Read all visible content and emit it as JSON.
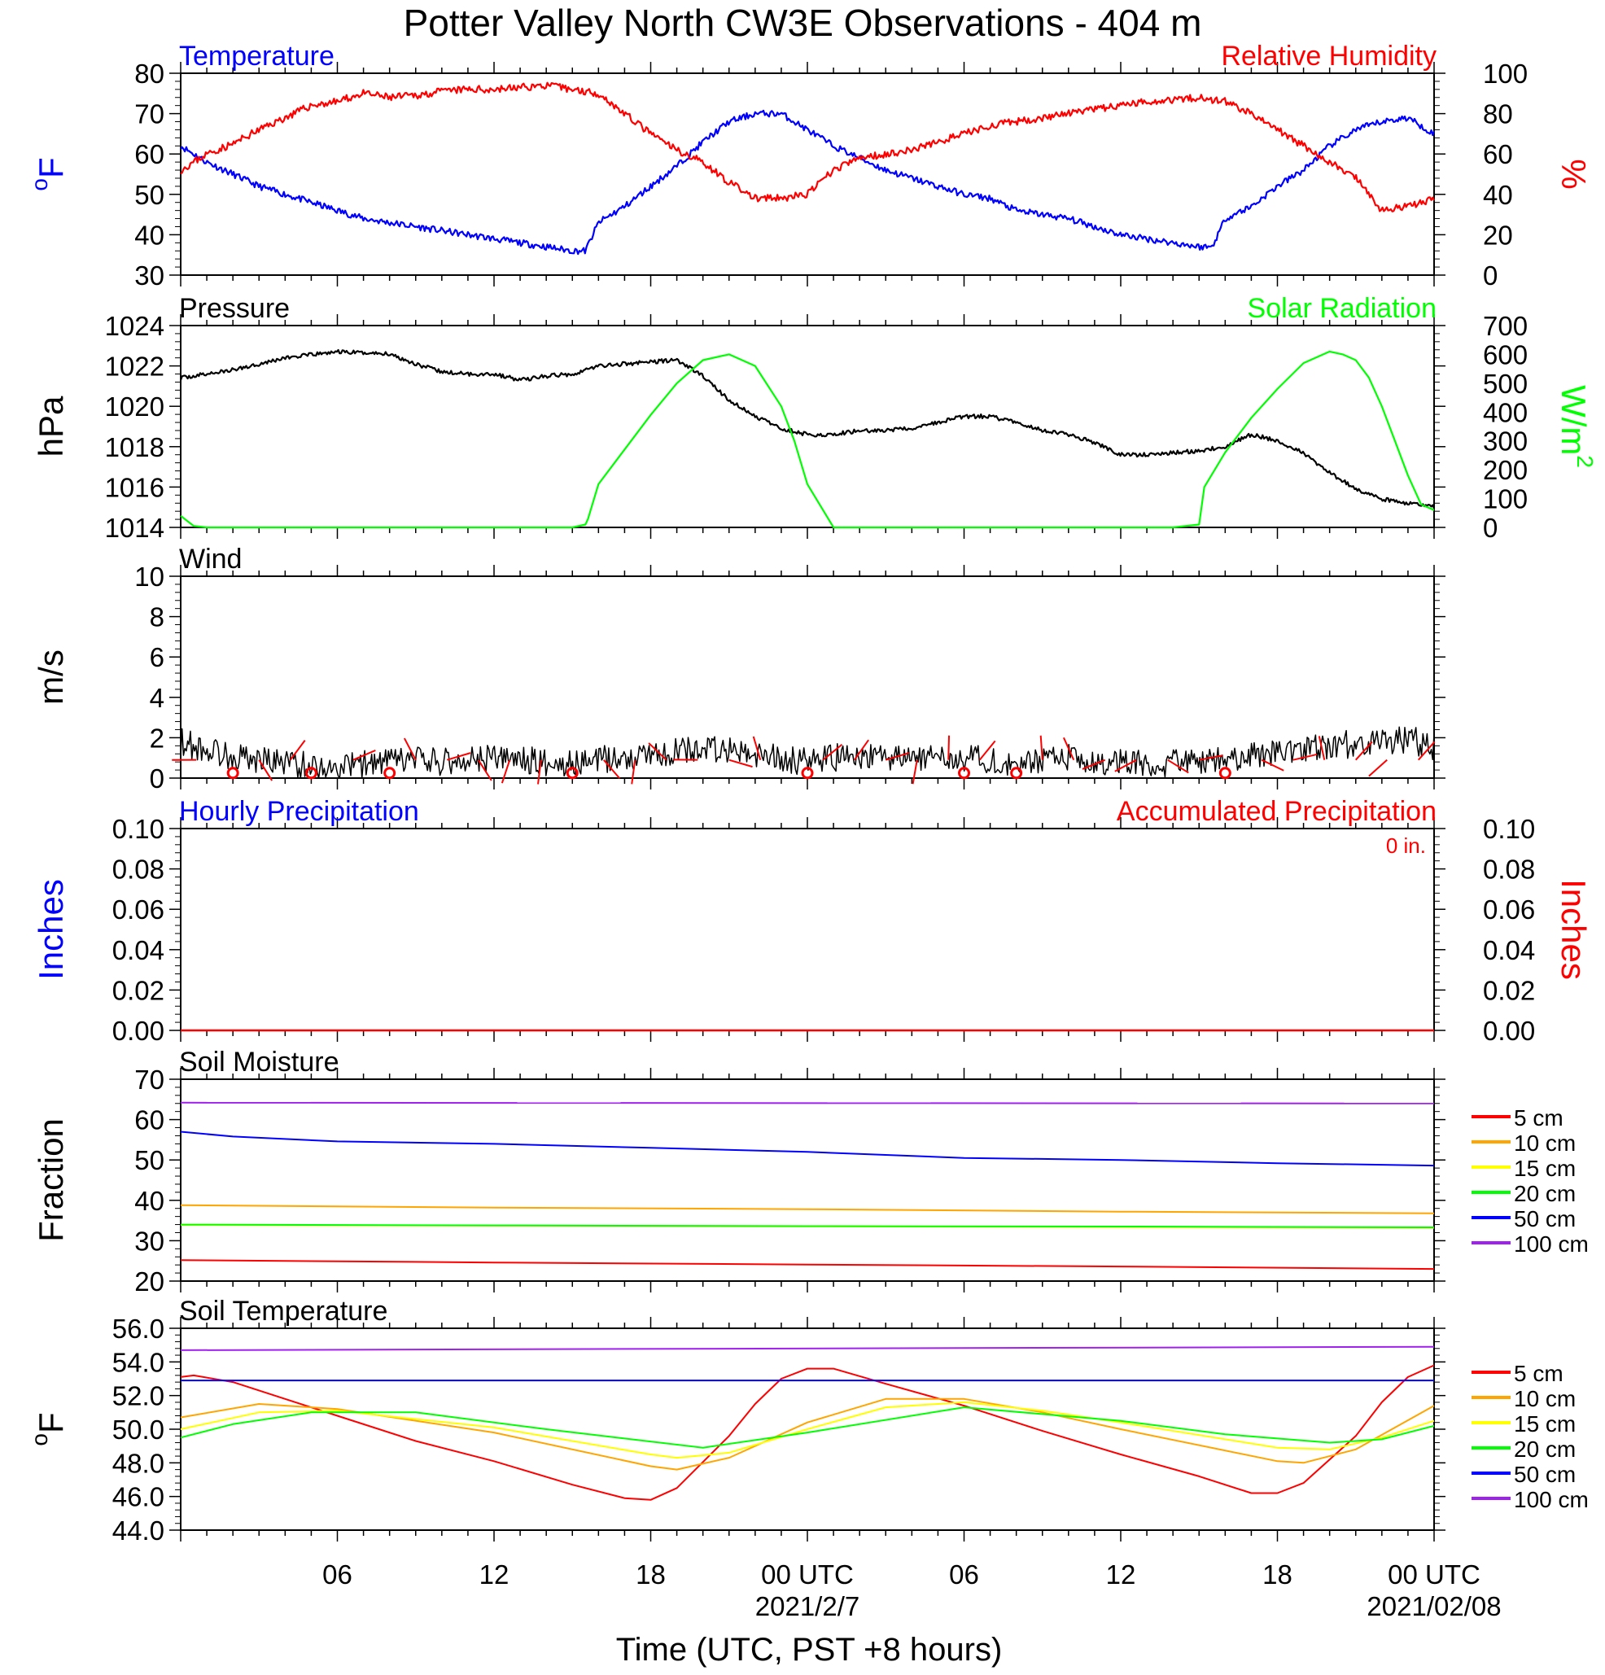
{
  "title": "Potter Valley North CW3E Observations - 404 m",
  "colors": {
    "temperature": "#0000ff",
    "humidity": "#ff0000",
    "pressure": "#000000",
    "solar": "#00ff00",
    "wind": "#000000",
    "barb": "#ff0000",
    "precip_hourly": "#0000ff",
    "precip_accum": "#ff0000",
    "cm5": "#ff0000",
    "cm10": "#ffa500",
    "cm15": "#ffff00",
    "cm20": "#00ff00",
    "cm50": "#0000ff",
    "cm100": "#a020f0"
  },
  "time_axis": {
    "title": "Time (UTC, PST +8 hours)",
    "range_hours": [
      0,
      48
    ],
    "tick_labels": [
      {
        "t": 6,
        "label": "06"
      },
      {
        "t": 12,
        "label": "12"
      },
      {
        "t": 18,
        "label": "18"
      },
      {
        "t": 24,
        "label": "00 UTC"
      },
      {
        "t": 30,
        "label": "06"
      },
      {
        "t": 36,
        "label": "12"
      },
      {
        "t": 42,
        "label": "18"
      },
      {
        "t": 48,
        "label": "00 UTC"
      }
    ],
    "date_labels": [
      {
        "t": 24,
        "label": "2021/2/7"
      },
      {
        "t": 48,
        "label": "2021/02/08"
      }
    ]
  },
  "chart_data": [
    {
      "type": "line",
      "panel": "temperature_humidity",
      "left_label": "Temperature",
      "right_label": "Relative Humidity",
      "ylabel_left": "oF",
      "ylabel_right": "%",
      "ylim_left": [
        30,
        80
      ],
      "ylim_right": [
        0,
        100
      ],
      "yticks_left": [
        "30",
        "40",
        "50",
        "60",
        "70",
        "80"
      ],
      "yticks_right": [
        "0",
        "20",
        "40",
        "60",
        "80",
        "100"
      ],
      "series": [
        {
          "name": "Temperature",
          "axis": "left",
          "x": [
            0,
            1,
            2,
            3,
            4,
            5,
            6,
            7,
            8,
            9,
            10,
            11,
            12,
            13,
            14,
            15,
            15.5,
            16,
            17,
            18,
            19,
            20,
            21,
            22,
            23,
            24,
            25,
            26,
            27,
            28,
            29,
            30,
            31,
            32,
            33,
            34,
            35,
            36,
            37,
            38,
            39,
            39.5,
            40,
            41,
            42,
            43,
            44,
            45,
            46,
            47,
            48
          ],
          "y": [
            62,
            58,
            55,
            52,
            50,
            48,
            46,
            44,
            43,
            42,
            41,
            40,
            39,
            38,
            37,
            36,
            36,
            43,
            47,
            52,
            57,
            63,
            68,
            70,
            70,
            66,
            62,
            59,
            56,
            54,
            52,
            50,
            49,
            46,
            45,
            44,
            42,
            40,
            39,
            38,
            37,
            37,
            44,
            47,
            52,
            56,
            62,
            66,
            68,
            69,
            65
          ]
        },
        {
          "name": "Relative Humidity",
          "axis": "right",
          "x": [
            0,
            1,
            2,
            3,
            4,
            5,
            6,
            7,
            8,
            9,
            10,
            11,
            12,
            13,
            14,
            15,
            16,
            17,
            18,
            19,
            20,
            21,
            22,
            23,
            24,
            25,
            26,
            27,
            28,
            29,
            30,
            31,
            32,
            33,
            34,
            35,
            36,
            37,
            38,
            39,
            40,
            41,
            42,
            43,
            44,
            45,
            46,
            47,
            48
          ],
          "y": [
            52,
            60,
            65,
            72,
            78,
            84,
            86,
            90,
            88,
            89,
            91,
            92,
            92,
            93,
            94,
            92,
            90,
            80,
            70,
            62,
            56,
            46,
            38,
            38,
            40,
            52,
            58,
            60,
            62,
            66,
            70,
            74,
            76,
            78,
            80,
            82,
            84,
            86,
            87,
            88,
            86,
            80,
            72,
            64,
            56,
            48,
            32,
            34,
            38
          ]
        }
      ]
    },
    {
      "type": "line",
      "panel": "pressure_solar",
      "left_label": "Pressure",
      "right_label": "Solar Radiation",
      "ylabel_left": "hPa",
      "ylabel_right": "W/m2",
      "ylim_left": [
        1014,
        1024
      ],
      "ylim_right": [
        0,
        700
      ],
      "yticks_left": [
        "1014",
        "1016",
        "1018",
        "1020",
        "1022",
        "1024"
      ],
      "yticks_right": [
        "0",
        "100",
        "200",
        "300",
        "400",
        "500",
        "600",
        "700"
      ],
      "series": [
        {
          "name": "Pressure",
          "axis": "left",
          "x": [
            0,
            2,
            4,
            6,
            8,
            9,
            10,
            11,
            12,
            13,
            14,
            15,
            16,
            17,
            18,
            19,
            20,
            21,
            22,
            23,
            24,
            25,
            26,
            27,
            28,
            29,
            30,
            31,
            32,
            33,
            34,
            35,
            36,
            37,
            38,
            39,
            40,
            41,
            42,
            43,
            44,
            45,
            46,
            47,
            48
          ],
          "y": [
            1021.4,
            1021.8,
            1022.4,
            1022.7,
            1022.6,
            1022.1,
            1021.7,
            1021.6,
            1021.6,
            1021.3,
            1021.5,
            1021.6,
            1022.0,
            1022.1,
            1022.2,
            1022.3,
            1021.5,
            1020.3,
            1019.5,
            1018.9,
            1018.6,
            1018.6,
            1018.8,
            1018.8,
            1018.9,
            1019.2,
            1019.5,
            1019.5,
            1019.2,
            1018.8,
            1018.6,
            1018.2,
            1017.6,
            1017.6,
            1017.7,
            1017.8,
            1018.0,
            1018.6,
            1018.3,
            1017.7,
            1016.7,
            1015.9,
            1015.4,
            1015.2,
            1015.0
          ]
        },
        {
          "name": "Solar Radiation",
          "axis": "right",
          "x": [
            0,
            0.5,
            1,
            14,
            15,
            15.5,
            15.6,
            16,
            17,
            18,
            19,
            20,
            21,
            22,
            23,
            23.5,
            24,
            25,
            38,
            39,
            39.2,
            40,
            41,
            42,
            43,
            44,
            44.5,
            45,
            45.5,
            46,
            46.5,
            47,
            47.5,
            48
          ],
          "y": [
            40,
            5,
            0,
            0,
            0,
            10,
            30,
            150,
            270,
            390,
            500,
            580,
            600,
            560,
            420,
            300,
            150,
            0,
            0,
            10,
            140,
            260,
            380,
            480,
            570,
            610,
            600,
            580,
            520,
            420,
            300,
            180,
            80,
            60
          ]
        }
      ]
    },
    {
      "type": "line",
      "panel": "wind",
      "left_label": "Wind",
      "ylabel_left": "m/s",
      "ylim_left": [
        0,
        10
      ],
      "yticks_left": [
        "0",
        "2",
        "4",
        "6",
        "8",
        "10"
      ],
      "series": [
        {
          "name": "Wind",
          "axis": "left",
          "x": [
            0,
            1,
            2,
            3,
            4,
            5,
            6,
            7,
            8,
            9,
            10,
            11,
            12,
            13,
            14,
            15,
            16,
            17,
            18,
            19,
            20,
            21,
            22,
            23,
            24,
            25,
            26,
            27,
            28,
            29,
            30,
            31,
            32,
            33,
            34,
            35,
            36,
            37,
            38,
            39,
            40,
            41,
            42,
            43,
            44,
            45,
            46,
            47,
            48
          ],
          "y": [
            1.8,
            1.4,
            1.1,
            0.9,
            0.8,
            0.6,
            0.5,
            0.7,
            0.8,
            0.9,
            0.8,
            0.9,
            1.0,
            0.9,
            0.8,
            0.7,
            0.9,
            1.0,
            1.2,
            1.3,
            1.5,
            1.3,
            1.1,
            1.0,
            0.8,
            1.0,
            1.1,
            1.0,
            0.9,
            1.1,
            1.0,
            0.9,
            0.8,
            0.9,
            1.0,
            0.8,
            0.9,
            0.8,
            0.7,
            0.8,
            0.9,
            1.1,
            1.3,
            1.5,
            1.6,
            1.7,
            1.8,
            1.9,
            1.6
          ]
        }
      ],
      "calm_markers_x": [
        2,
        5,
        8,
        15,
        24,
        30,
        32,
        40
      ]
    },
    {
      "type": "line",
      "panel": "precipitation",
      "left_label": "Hourly Precipitation",
      "right_label": "Accumulated Precipitation",
      "total_text": "0 in.",
      "ylabel_left": "Inches",
      "ylabel_right": "Inches",
      "ylim_left": [
        0,
        0.1
      ],
      "ylim_right": [
        0,
        0.1
      ],
      "yticks_left": [
        "0.00",
        "0.02",
        "0.04",
        "0.06",
        "0.08",
        "0.10"
      ],
      "yticks_right": [
        "0.00",
        "0.02",
        "0.04",
        "0.06",
        "0.08",
        "0.10"
      ],
      "series": [
        {
          "name": "Accumulated Precipitation",
          "axis": "right",
          "x": [
            0,
            48
          ],
          "y": [
            0,
            0
          ]
        }
      ]
    },
    {
      "type": "line",
      "panel": "soil_moisture",
      "left_label": "Soil Moisture",
      "ylabel_left": "Fraction",
      "ylim_left": [
        20,
        70
      ],
      "yticks_left": [
        "20",
        "30",
        "40",
        "50",
        "60",
        "70"
      ],
      "series": [
        {
          "name": "5 cm",
          "color_key": "cm5",
          "x": [
            0,
            12,
            24,
            36,
            48
          ],
          "y": [
            25.2,
            24.6,
            24.1,
            23.6,
            23.0
          ]
        },
        {
          "name": "10 cm",
          "color_key": "cm10",
          "x": [
            0,
            12,
            24,
            36,
            48
          ],
          "y": [
            38.8,
            38.2,
            37.8,
            37.2,
            36.8
          ]
        },
        {
          "name": "15 cm",
          "color_key": "cm15",
          "x": [
            0,
            48
          ],
          "y": [
            33.9,
            33.2
          ]
        },
        {
          "name": "20 cm",
          "color_key": "cm20",
          "x": [
            0,
            12,
            24,
            36,
            48
          ],
          "y": [
            34.0,
            33.8,
            33.6,
            33.5,
            33.3
          ]
        },
        {
          "name": "50 cm",
          "color_key": "cm50",
          "x": [
            0,
            2,
            6,
            12,
            18,
            24,
            30,
            36,
            42,
            48
          ],
          "y": [
            57.0,
            55.8,
            54.6,
            54.0,
            53.0,
            52.0,
            50.5,
            50.0,
            49.2,
            48.6
          ]
        },
        {
          "name": "100 cm",
          "color_key": "cm100",
          "x": [
            0,
            48
          ],
          "y": [
            64.2,
            64.0
          ]
        }
      ]
    },
    {
      "type": "line",
      "panel": "soil_temperature",
      "left_label": "Soil Temperature",
      "ylabel_left": "oF",
      "ylim_left": [
        44,
        56
      ],
      "yticks_left": [
        "44.0",
        "46.0",
        "48.0",
        "50.0",
        "52.0",
        "54.0",
        "56.0"
      ],
      "series": [
        {
          "name": "5 cm",
          "color_key": "cm5",
          "x": [
            0,
            0.5,
            2,
            4,
            6,
            9,
            12,
            15,
            17,
            18,
            19,
            21,
            22,
            23,
            24,
            25,
            27,
            30,
            33,
            36,
            39,
            41,
            42,
            43,
            45,
            46,
            47,
            48
          ],
          "y": [
            53.1,
            53.2,
            52.8,
            51.8,
            50.8,
            49.3,
            48.1,
            46.7,
            45.9,
            45.8,
            46.5,
            49.6,
            51.5,
            53.0,
            53.6,
            53.6,
            52.7,
            51.4,
            49.9,
            48.5,
            47.2,
            46.2,
            46.2,
            46.8,
            49.6,
            51.6,
            53.1,
            53.8
          ]
        },
        {
          "name": "10 cm",
          "color_key": "cm10",
          "x": [
            0,
            3,
            6,
            12,
            18,
            19,
            21,
            24,
            27,
            30,
            33,
            36,
            42,
            43,
            45,
            48
          ],
          "y": [
            50.7,
            51.5,
            51.2,
            49.8,
            47.8,
            47.6,
            48.3,
            50.4,
            51.8,
            51.8,
            51.0,
            50.0,
            48.1,
            48.0,
            48.8,
            51.4
          ]
        },
        {
          "name": "15 cm",
          "color_key": "cm15",
          "x": [
            0,
            3,
            6,
            12,
            18,
            19,
            21,
            24,
            27,
            30,
            33,
            36,
            42,
            44,
            46,
            48
          ],
          "y": [
            50.0,
            51.0,
            51.1,
            50.1,
            48.5,
            48.3,
            48.6,
            50.0,
            51.3,
            51.6,
            51.1,
            50.4,
            48.9,
            48.8,
            49.5,
            50.5
          ]
        },
        {
          "name": "20 cm",
          "color_key": "cm20",
          "x": [
            0,
            2,
            5,
            9,
            14,
            20,
            24,
            30,
            36,
            40,
            44,
            46,
            48
          ],
          "y": [
            49.5,
            50.3,
            51.0,
            51.0,
            50.0,
            48.9,
            49.8,
            51.3,
            50.5,
            49.7,
            49.2,
            49.4,
            50.2
          ]
        },
        {
          "name": "50 cm",
          "color_key": "cm50",
          "x": [
            0,
            48
          ],
          "y": [
            52.9,
            52.9
          ]
        },
        {
          "name": "100 cm",
          "color_key": "cm100",
          "x": [
            0,
            48
          ],
          "y": [
            54.7,
            54.9
          ]
        }
      ]
    }
  ]
}
